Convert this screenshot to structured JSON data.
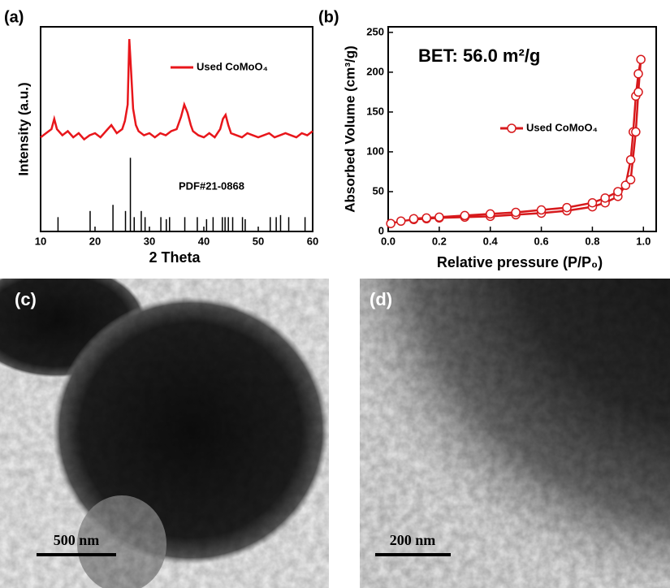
{
  "chart_data": [
    {
      "type": "line",
      "panel_label": "(a)",
      "x_label": "2 Theta",
      "y_label": "Intensity (a.u.)",
      "x": [
        10,
        11,
        12,
        12.5,
        13,
        14,
        15,
        16,
        17,
        18,
        19,
        20,
        21,
        22,
        23,
        24,
        25,
        25.5,
        26,
        26.3,
        26.6,
        27,
        27.5,
        28,
        29,
        30,
        31,
        32,
        33,
        34,
        35,
        35.8,
        36.4,
        37,
        37.6,
        38,
        39,
        40,
        41,
        42,
        43,
        43.5,
        44,
        44.5,
        45,
        46,
        47,
        48,
        49,
        50,
        51,
        52,
        53,
        54,
        55,
        56,
        57,
        58,
        59,
        60
      ],
      "series": [
        {
          "name": "Used CoMoO₄",
          "color": "#e8161b",
          "values": [
            46,
            48,
            50,
            55,
            50,
            47,
            49,
            46,
            48,
            45,
            47,
            48,
            46,
            49,
            52,
            48,
            50,
            54,
            62,
            94,
            80,
            60,
            52,
            49,
            47,
            48,
            46,
            48,
            47,
            49,
            50,
            56,
            62,
            58,
            52,
            49,
            47,
            46,
            48,
            46,
            50,
            55,
            57,
            52,
            48,
            47,
            46,
            48,
            47,
            46,
            47,
            48,
            46,
            47,
            48,
            47,
            46,
            48,
            47,
            49
          ]
        }
      ],
      "reference": {
        "name": "PDF#21-0868",
        "color": "#000000",
        "x": [
          13.2,
          19.1,
          23.3,
          25.6,
          26.5,
          27.2,
          28.5,
          29.2,
          32.1,
          33.1,
          33.7,
          36.5,
          38.8,
          40.5,
          41.7,
          43.4,
          43.9,
          44.5,
          45.3,
          47.1,
          47.6,
          52.2,
          53.3,
          54.1,
          55.6,
          58.6
        ],
        "values": [
          7,
          10,
          13,
          10,
          36,
          7,
          10,
          7,
          7,
          6,
          7,
          7,
          7,
          6,
          7,
          7,
          7,
          7,
          7,
          7,
          6,
          7,
          7,
          8,
          7,
          7
        ]
      },
      "xlim": [
        10,
        60
      ],
      "xticks": [
        10,
        20,
        30,
        40,
        50,
        60
      ],
      "ylim": [
        0,
        100
      ]
    },
    {
      "type": "line",
      "panel_label": "(b)",
      "annotation": "BET: 56.0 m²/g",
      "x_label": "Relative pressure (P/P₀)",
      "y_label": "Absorbed Volume (cm³/g)",
      "x": [
        0.01,
        0.05,
        0.1,
        0.15,
        0.2,
        0.3,
        0.4,
        0.5,
        0.6,
        0.7,
        0.8,
        0.85,
        0.9,
        0.93,
        0.95,
        0.96,
        0.97,
        0.98,
        0.99,
        0.98,
        0.97,
        0.95,
        0.9,
        0.85,
        0.8,
        0.7,
        0.6,
        0.5,
        0.4,
        0.3,
        0.2,
        0.15,
        0.1
      ],
      "series": [
        {
          "name": "Used CoMoO₄",
          "color": "#d7191c",
          "marker": "open-circle",
          "values": [
            10,
            13,
            15,
            16,
            17,
            18,
            19,
            21,
            23,
            26,
            31,
            36,
            44,
            58,
            90,
            125,
            170,
            198,
            216,
            175,
            125,
            65,
            50,
            42,
            36,
            30,
            27,
            24,
            22,
            20,
            18,
            17,
            16
          ]
        }
      ],
      "xlim": [
        0,
        1.05
      ],
      "xticks": [
        {
          "value": 0,
          "label": "0.0"
        },
        {
          "value": 0.2,
          "label": "0.2"
        },
        {
          "value": 0.4,
          "label": "0.4"
        },
        {
          "value": 0.6,
          "label": "0.6"
        },
        {
          "value": 0.8,
          "label": "0.8"
        },
        {
          "value": 1,
          "label": "1.0"
        }
      ],
      "ylim": [
        0,
        257
      ],
      "yticks": [
        0,
        50,
        100,
        150,
        200,
        250
      ]
    }
  ],
  "images": [
    {
      "label": "(c)",
      "scale_bar": "500 nm"
    },
    {
      "label": "(d)",
      "scale_bar": "200 nm"
    }
  ]
}
